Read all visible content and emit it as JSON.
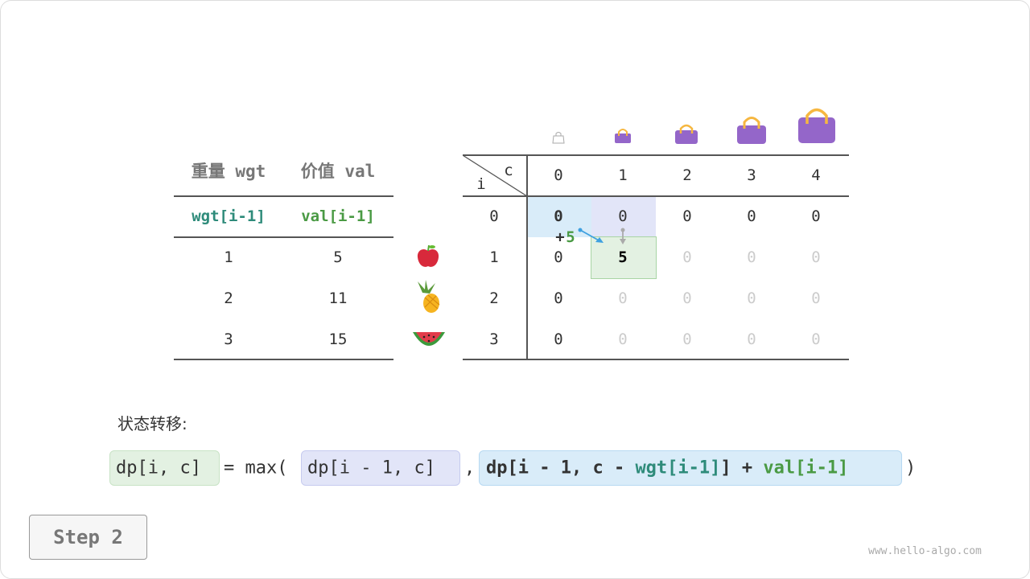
{
  "items_table": {
    "headers": [
      "重量 wgt",
      "价值 val"
    ],
    "subheaders": [
      "wgt[i-1]",
      "val[i-1]"
    ],
    "rows": [
      [
        "1",
        "5"
      ],
      [
        "2",
        "11"
      ],
      [
        "3",
        "15"
      ]
    ],
    "item_icons": [
      "apple-icon",
      "pineapple-icon",
      "watermelon-icon"
    ]
  },
  "dp_table": {
    "corner_row_label": "i",
    "corner_col_label": "c",
    "col_headers": [
      "0",
      "1",
      "2",
      "3",
      "4"
    ],
    "row_headers": [
      "0",
      "1",
      "2",
      "3"
    ],
    "cells": [
      [
        "0",
        "0",
        "0",
        "0",
        "0"
      ],
      [
        "0",
        "5",
        "0",
        "0",
        "0"
      ],
      [
        "0",
        "0",
        "0",
        "0",
        "0"
      ],
      [
        "0",
        "0",
        "0",
        "0",
        "0"
      ]
    ],
    "bag_icons": [
      "bag-capacity-0-icon",
      "bag-capacity-1-icon",
      "bag-capacity-2-icon",
      "bag-capacity-3-icon",
      "bag-capacity-4-icon"
    ],
    "arrow_label_plus": "+",
    "arrow_label_value": "5"
  },
  "formula": {
    "label": "状态转移:",
    "lhs": "dp[i, c]",
    "eq": "= max(",
    "opt1": "dp[i - 1, c]",
    "comma": ",",
    "opt2_a": "dp[i - 1, c - ",
    "opt2_wgt": "wgt[i-1]",
    "opt2_b": "] + ",
    "opt2_val": "val[i-1]",
    "close": ")"
  },
  "step_label": "Step 2",
  "watermark": "www.hello-algo.com",
  "colors": {
    "teal": "#2e8b7a",
    "green": "#4a9a44",
    "blue_bg": "#d9ecf9",
    "lavender_bg": "#e2e5f8",
    "green_bg": "#e3f1e2",
    "bag": "#9466c9"
  }
}
